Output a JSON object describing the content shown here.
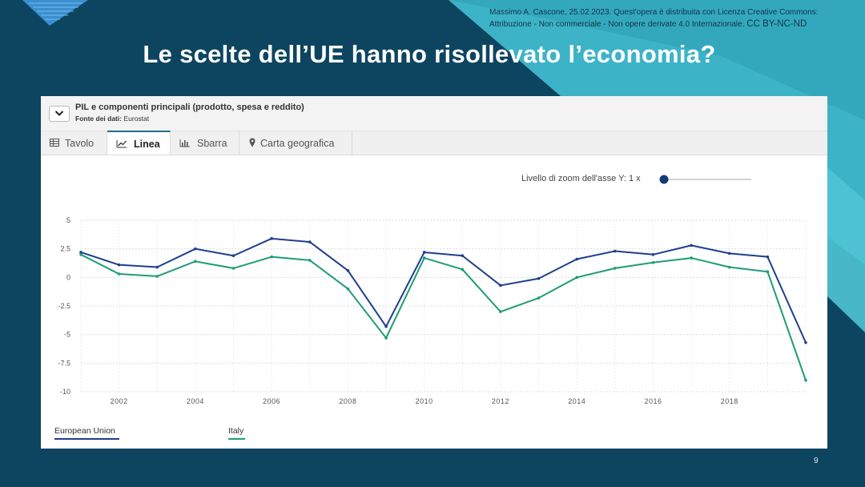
{
  "credit": {
    "line1": "Massimo A. Cascone, 25.02.2023. Quest'opera è distribuita con Licenza Creative Commons:",
    "line2": "Attribuzione - Non commerciale - Non opere derivate 4.0 Internazionale.",
    "license": "CC BY-NC-ND"
  },
  "slide": {
    "title": "Le scelte dell’UE hanno risollevato l’economia?",
    "page_number": "9"
  },
  "dataset": {
    "title": "PIL e componenti principali (prodotto, spesa e reddito)",
    "source_label": "Fonte dei dati:",
    "source_value": "Eurostat"
  },
  "tabs": [
    {
      "label": "Tavolo",
      "icon": "table-icon",
      "active": false
    },
    {
      "label": "Linea",
      "icon": "line-chart-icon",
      "active": true
    },
    {
      "label": "Sbarra",
      "icon": "bar-chart-icon",
      "active": false
    },
    {
      "label": "Carta geografica",
      "icon": "map-pin-icon",
      "active": false
    }
  ],
  "zoom": {
    "label": "Livello di zoom dell'asse Y: 1 x",
    "value": 1
  },
  "colors": {
    "background": "#0d4560",
    "accent_teal": "#3db3c7",
    "series_eu": "#1e3f8c",
    "series_italy": "#1f9c78"
  },
  "chart_data": {
    "type": "line",
    "title": "",
    "xlabel": "",
    "ylabel": "",
    "x": [
      2001,
      2002,
      2003,
      2004,
      2005,
      2006,
      2007,
      2008,
      2009,
      2010,
      2011,
      2012,
      2013,
      2014,
      2015,
      2016,
      2017,
      2018,
      2019,
      2020
    ],
    "x_ticks": [
      "2002",
      "2004",
      "2006",
      "2008",
      "2010",
      "2012",
      "2014",
      "2016",
      "2018"
    ],
    "y_ticks": [
      "5",
      "2.5",
      "0",
      "-2.5",
      "-5",
      "-7.5",
      "-10"
    ],
    "ylim": [
      -10,
      5
    ],
    "grid": true,
    "legend": "bottom-left",
    "series": [
      {
        "name": "European Union",
        "values": [
          2.2,
          1.1,
          0.9,
          2.5,
          1.9,
          3.4,
          3.1,
          0.6,
          -4.3,
          2.2,
          1.9,
          -0.7,
          -0.1,
          1.6,
          2.3,
          2.0,
          2.8,
          2.1,
          1.8,
          -5.7
        ]
      },
      {
        "name": "Italy",
        "values": [
          2.0,
          0.3,
          0.1,
          1.4,
          0.8,
          1.8,
          1.5,
          -1.0,
          -5.3,
          1.7,
          0.7,
          -3.0,
          -1.8,
          0.0,
          0.8,
          1.3,
          1.7,
          0.9,
          0.5,
          -9.0
        ]
      }
    ]
  }
}
